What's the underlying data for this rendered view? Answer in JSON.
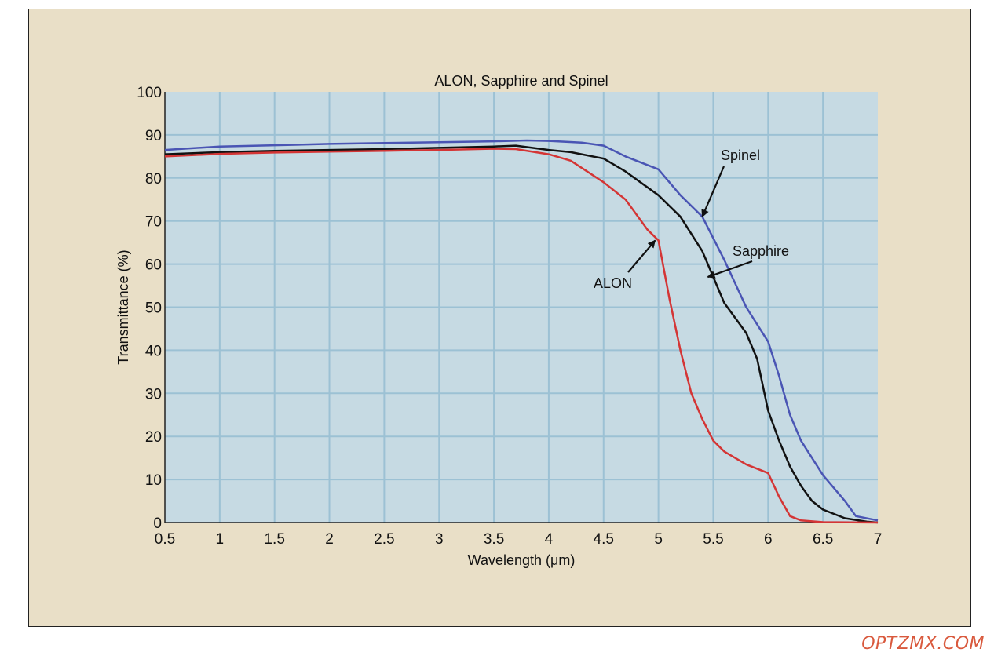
{
  "watermark": "OPTZMX.COM",
  "chart_data": {
    "type": "line",
    "title": "ALON, Sapphire and Spinel",
    "xlabel": "Wavelength (μm)",
    "ylabel": "Transmittance (%)",
    "xlim": [
      0.5,
      7
    ],
    "ylim": [
      0,
      100
    ],
    "xticks": [
      0.5,
      1,
      1.5,
      2,
      2.5,
      3,
      3.5,
      4,
      4.5,
      5,
      5.5,
      6,
      6.5,
      7
    ],
    "xtick_labels": [
      "0.5",
      "1",
      "1.5",
      "2",
      "2.5",
      "3",
      "3.5",
      "4",
      "4.5",
      "5",
      "5.5",
      "6",
      "6.5",
      "7"
    ],
    "yticks": [
      0,
      10,
      20,
      30,
      40,
      50,
      60,
      70,
      80,
      90,
      100
    ],
    "ytick_labels": [
      "0",
      "10",
      "20",
      "30",
      "40",
      "50",
      "60",
      "70",
      "80",
      "90",
      "100"
    ],
    "grid": true,
    "plot_background": "#c6dae3",
    "grid_color": "#9cc1d4",
    "series": [
      {
        "name": "Spinel",
        "color": "#4a55b4",
        "x": [
          0.5,
          1,
          1.5,
          2,
          2.5,
          3,
          3.5,
          3.8,
          4,
          4.3,
          4.5,
          4.7,
          5,
          5.2,
          5.4,
          5.6,
          5.8,
          6.0,
          6.1,
          6.2,
          6.3,
          6.5,
          6.7,
          6.8,
          7
        ],
        "y": [
          86.5,
          87.3,
          87.6,
          87.9,
          88.1,
          88.3,
          88.5,
          88.7,
          88.6,
          88.2,
          87.5,
          85,
          82,
          76,
          71,
          61,
          50,
          42,
          34,
          25,
          19,
          11,
          5,
          1.5,
          0.5
        ]
      },
      {
        "name": "Sapphire",
        "color": "#111111",
        "x": [
          0.5,
          1,
          1.5,
          2,
          2.5,
          3,
          3.5,
          3.7,
          4,
          4.2,
          4.5,
          4.7,
          5,
          5.2,
          5.4,
          5.6,
          5.8,
          5.9,
          6.0,
          6.1,
          6.2,
          6.3,
          6.4,
          6.5,
          6.7,
          6.9,
          7
        ],
        "y": [
          85.5,
          86,
          86.3,
          86.5,
          86.7,
          87,
          87.3,
          87.5,
          86.5,
          86,
          84.5,
          81.5,
          76,
          71,
          63,
          51,
          44,
          38,
          26,
          19,
          13,
          8.5,
          5,
          3,
          1,
          0.2,
          0
        ]
      },
      {
        "name": "ALON",
        "color": "#d43535",
        "x": [
          0.5,
          1,
          1.5,
          2,
          2.5,
          3,
          3.5,
          3.7,
          4,
          4.2,
          4.5,
          4.7,
          4.9,
          5.0,
          5.1,
          5.2,
          5.3,
          5.4,
          5.5,
          5.6,
          5.8,
          6.0,
          6.1,
          6.2,
          6.3,
          6.5,
          7
        ],
        "y": [
          85,
          85.6,
          85.9,
          86.1,
          86.3,
          86.5,
          86.8,
          86.7,
          85.5,
          84,
          79,
          75,
          68,
          65.5,
          52,
          40,
          30,
          24,
          19,
          16.5,
          13.5,
          11.5,
          6,
          1.5,
          0.5,
          0.1,
          0
        ]
      }
    ],
    "annotations": [
      {
        "text": "Spinel",
        "target": [
          5.4,
          71
        ]
      },
      {
        "text": "Sapphire",
        "target": [
          5.45,
          57
        ]
      },
      {
        "text": "ALON",
        "target": [
          4.97,
          65.5
        ]
      }
    ]
  }
}
